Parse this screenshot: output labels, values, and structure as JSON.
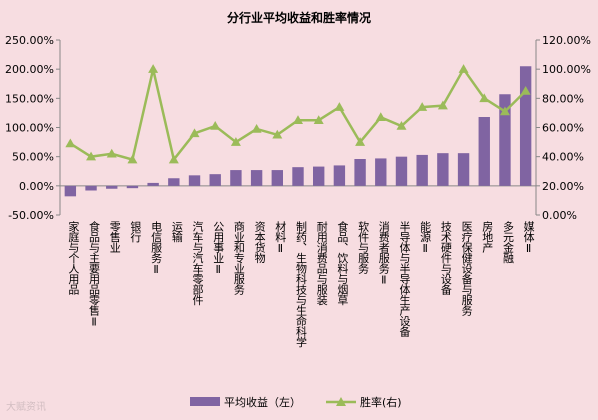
{
  "chart_data": {
    "type": "bar+line",
    "title": "分行业平均收益和胜率情况",
    "categories": [
      "家庭与个人用品",
      "食品与主要用品零售Ⅱ",
      "零售业",
      "银行",
      "电信服务Ⅱ",
      "运输",
      "汽车与汽车零部件",
      "公用事业Ⅱ",
      "商业和专业服务",
      "资本货物",
      "材料Ⅱ",
      "制药、生物科技与生命科学",
      "耐用消费品与服装",
      "食品、饮料与烟草",
      "软件与服务",
      "消费者服务Ⅱ",
      "半导体与半导体生产设备",
      "能源Ⅱ",
      "技术硬件与设备",
      "医疗保健设备与服务",
      "房地产",
      "多元金融",
      "媒体Ⅱ"
    ],
    "series": [
      {
        "name": "平均收益（左）",
        "type": "bar",
        "axis": "left",
        "color": "#8064A2",
        "values": [
          -18,
          -8,
          -5,
          -4,
          5,
          13,
          18,
          20,
          27,
          27,
          27,
          32,
          33,
          35,
          46,
          47,
          50,
          53,
          56,
          56,
          118,
          157,
          205
        ]
      },
      {
        "name": "胜率(右)",
        "type": "line",
        "axis": "right",
        "color": "#9BBB59",
        "values": [
          49,
          40,
          42,
          38,
          100,
          38,
          56,
          61,
          50,
          59,
          55,
          65,
          65,
          74,
          50,
          67,
          61,
          74,
          75,
          100,
          80,
          71,
          85
        ]
      }
    ],
    "left_axis": {
      "min": -50,
      "max": 250,
      "step": 50,
      "ticks": [
        "-50.00%",
        "0.00%",
        "50.00%",
        "100.00%",
        "150.00%",
        "200.00%",
        "250.00%"
      ]
    },
    "right_axis": {
      "min": 0,
      "max": 120,
      "step": 20,
      "ticks": [
        "0.00%",
        "20.00%",
        "40.00%",
        "60.00%",
        "80.00%",
        "100.00%",
        "120.00%"
      ]
    },
    "legend_position": "bottom",
    "grid": false,
    "background": "#F7DDE1"
  },
  "watermark": "大赋资讯"
}
